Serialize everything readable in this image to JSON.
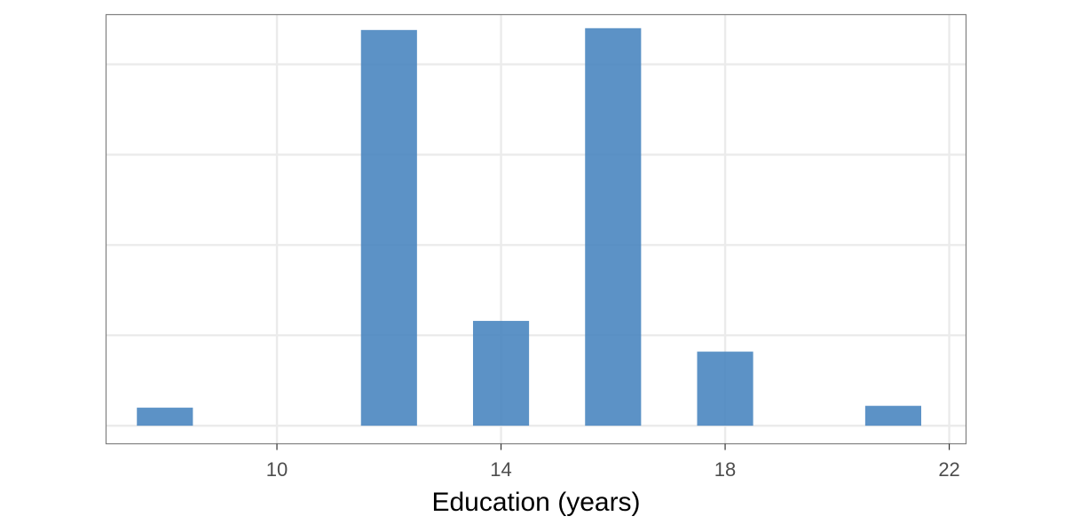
{
  "chart_data": {
    "type": "bar",
    "title": "",
    "xlabel": "Education (years)",
    "ylabel": "",
    "x_ticks": [
      10,
      14,
      18,
      22
    ],
    "xlim": [
      6.95,
      22.3
    ],
    "ylim": [
      -0.2,
      4.55
    ],
    "y_gridlines": [
      0,
      1,
      2,
      3,
      4
    ],
    "y_tick_labels_shown": false,
    "grid": true,
    "bars": [
      {
        "x_start": 7.5,
        "x_end": 8.5,
        "value": 0.2
      },
      {
        "x_start": 11.5,
        "x_end": 12.5,
        "value": 4.38
      },
      {
        "x_start": 13.5,
        "x_end": 14.5,
        "value": 1.16
      },
      {
        "x_start": 15.5,
        "x_end": 16.5,
        "value": 4.4
      },
      {
        "x_start": 17.5,
        "x_end": 18.5,
        "value": 0.82
      },
      {
        "x_start": 20.5,
        "x_end": 21.5,
        "value": 0.22
      }
    ],
    "bar_color": "#4a86c0",
    "grid_color": "#ebebeb",
    "panel_border_color": "#808080"
  }
}
